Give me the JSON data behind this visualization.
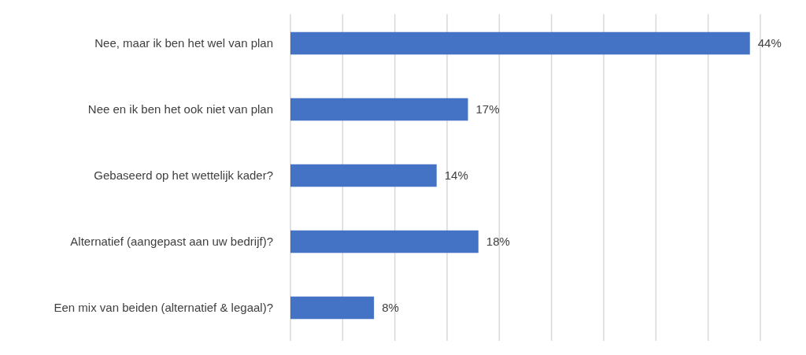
{
  "chart_data": {
    "type": "bar",
    "orientation": "horizontal",
    "categories": [
      "Nee, maar ik ben het wel van plan",
      "Nee en ik ben het ook niet van plan",
      "Gebaseerd op het wettelijk kader?",
      "Alternatief (aangepast aan uw bedrijf)?",
      "Een mix van beiden (alternatief & legaal)?"
    ],
    "values": [
      44,
      17,
      14,
      18,
      8
    ],
    "value_labels": [
      "44%",
      "17%",
      "14%",
      "18%",
      "8%"
    ],
    "color": "#4472c4",
    "xlim": [
      0,
      45
    ],
    "xticks": [
      {
        "value": 0,
        "label": null
      },
      {
        "value": 5,
        "label": null
      },
      {
        "value": 10,
        "label": null
      },
      {
        "value": 15,
        "label": null
      },
      {
        "value": 20,
        "label": null
      },
      {
        "value": 25,
        "label": null
      },
      {
        "value": 30,
        "label": null
      },
      {
        "value": 35,
        "label": null
      },
      {
        "value": 40,
        "label": null
      },
      {
        "value": 45,
        "label": null
      }
    ],
    "grid": "x",
    "tick_labels": "y"
  }
}
